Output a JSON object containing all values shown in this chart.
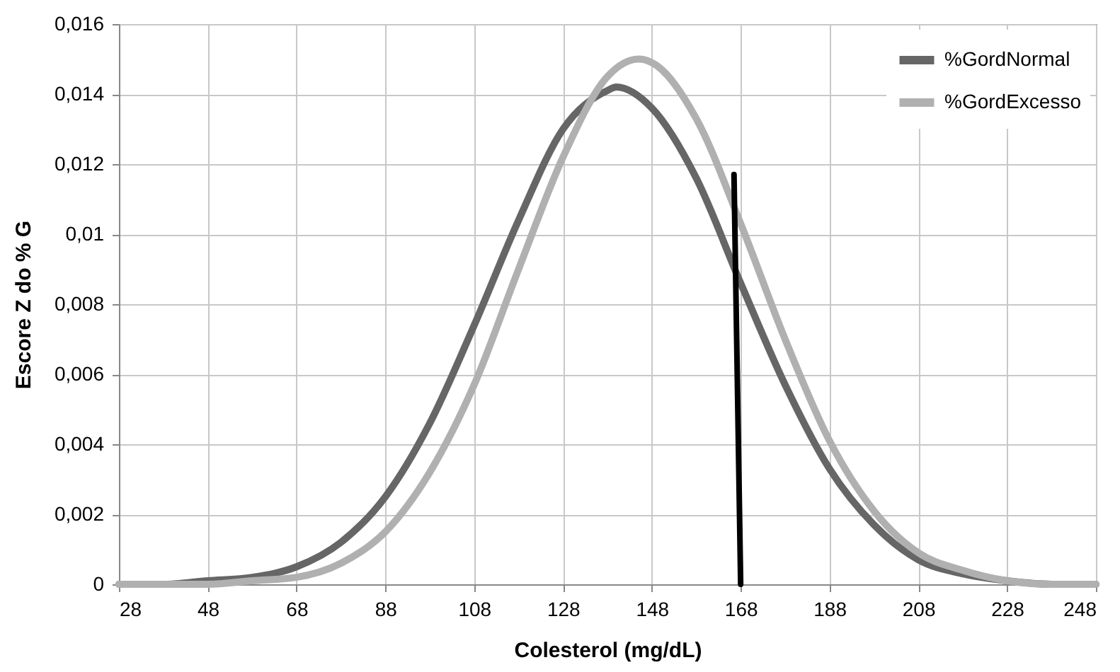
{
  "chart_data": {
    "type": "line",
    "xlabel": "Colesterol (mg/dL)",
    "ylabel": "Escore Z do % G",
    "xlim": [
      28,
      248
    ],
    "xticks": [
      28,
      48,
      68,
      88,
      108,
      128,
      148,
      168,
      188,
      208,
      228,
      248
    ],
    "ylim": [
      0,
      0.016
    ],
    "yticks": [
      0,
      {
        "value": 0.002,
        "label": "0,002"
      },
      {
        "value": 0.004,
        "label": "0,004"
      },
      {
        "value": 0.006,
        "label": "0,006"
      },
      {
        "value": 0.008,
        "label": "0,008"
      },
      {
        "value": 0.01,
        "label": "0,01"
      },
      {
        "value": 0.012,
        "label": "0,012"
      },
      {
        "value": 0.014,
        "label": "0,014"
      },
      {
        "value": 0.016,
        "label": "0,016"
      }
    ],
    "grid": true,
    "legend": "top right",
    "series": [
      {
        "name": "%GordNormal",
        "color": "#666666",
        "x": [
          28,
          38,
          48,
          58,
          68,
          78,
          88,
          98,
          108,
          118,
          128,
          138,
          140,
          148,
          158,
          168,
          178,
          188,
          198,
          208,
          218,
          228,
          238,
          248
        ],
        "values": [
          0,
          0,
          0.0001,
          0.0002,
          0.0005,
          0.0012,
          0.0025,
          0.0046,
          0.0074,
          0.0104,
          0.013,
          0.0141,
          0.0142,
          0.0136,
          0.0116,
          0.0086,
          0.0057,
          0.0033,
          0.0017,
          0.0007,
          0.0003,
          0.0001,
          0,
          0
        ]
      },
      {
        "name": "%GordExcesso",
        "color": "#b0b0b0",
        "x": [
          28,
          38,
          48,
          58,
          68,
          78,
          88,
          98,
          108,
          118,
          128,
          138,
          145,
          148,
          158,
          168,
          178,
          188,
          198,
          208,
          218,
          228,
          238,
          248
        ],
        "values": [
          0,
          0,
          0,
          0.0001,
          0.0002,
          0.0006,
          0.0015,
          0.0032,
          0.0057,
          0.009,
          0.0122,
          0.0145,
          0.015,
          0.0149,
          0.0133,
          0.0103,
          0.007,
          0.0041,
          0.0021,
          0.0009,
          0.0004,
          0.0001,
          0,
          0
        ]
      },
      {
        "color": "#000000",
        "x": [
          166.5,
          168
        ],
        "values": [
          0.0117,
          0
        ]
      }
    ]
  }
}
